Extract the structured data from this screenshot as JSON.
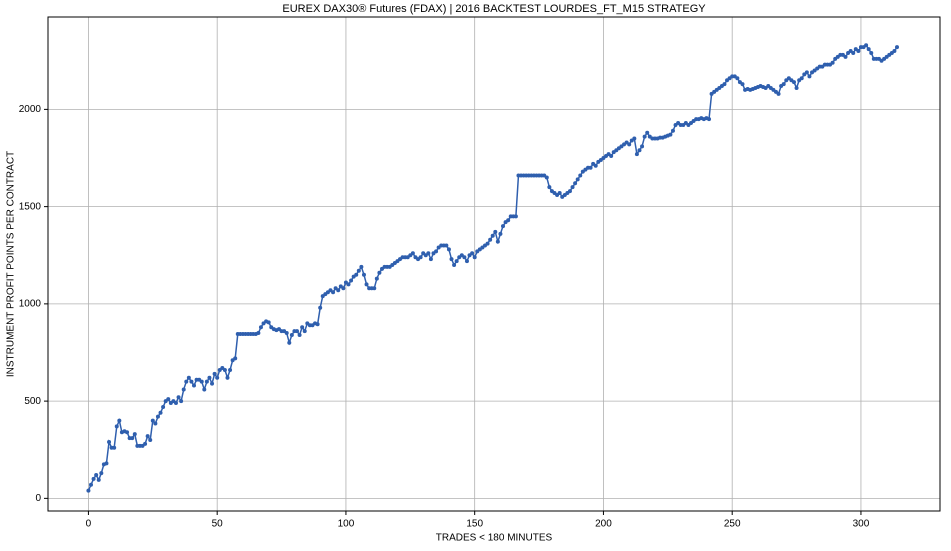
{
  "chart_data": {
    "type": "line",
    "title": "EUREX DAX30® Futures (FDAX) | 2016 BACKTEST LOURDES_FT_M15 STRATEGY",
    "xlabel": "TRADES < 180 MINUTES",
    "ylabel": "INSTRUMENT PROFIT POINTS PER CONTRACT",
    "xlim": [
      -15.7,
      330.7
    ],
    "ylim": [
      -65,
      2475
    ],
    "xticks": [
      0,
      50,
      100,
      150,
      200,
      250,
      300
    ],
    "yticks": [
      0,
      500,
      1000,
      1500,
      2000
    ],
    "grid": true,
    "x": [
      0,
      1,
      2,
      3,
      4,
      5,
      6,
      7,
      8,
      9,
      10,
      11,
      12,
      13,
      14,
      15,
      16,
      17,
      18,
      19,
      20,
      21,
      22,
      23,
      24,
      25,
      26,
      27,
      28,
      29,
      30,
      31,
      32,
      33,
      34,
      35,
      36,
      37,
      38,
      39,
      40,
      41,
      42,
      43,
      44,
      45,
      46,
      47,
      48,
      49,
      50,
      51,
      52,
      53,
      54,
      55,
      56,
      57,
      58,
      59,
      60,
      61,
      62,
      63,
      64,
      65,
      66,
      67,
      68,
      69,
      70,
      71,
      72,
      73,
      74,
      75,
      76,
      77,
      78,
      79,
      80,
      81,
      82,
      83,
      84,
      85,
      86,
      87,
      88,
      89,
      90,
      91,
      92,
      93,
      94,
      95,
      96,
      97,
      98,
      99,
      100,
      101,
      102,
      103,
      104,
      105,
      106,
      107,
      108,
      109,
      110,
      111,
      112,
      113,
      114,
      115,
      116,
      117,
      118,
      119,
      120,
      121,
      122,
      123,
      124,
      125,
      126,
      127,
      128,
      129,
      130,
      131,
      132,
      133,
      134,
      135,
      136,
      137,
      138,
      139,
      140,
      141,
      142,
      143,
      144,
      145,
      146,
      147,
      148,
      149,
      150,
      151,
      152,
      153,
      154,
      155,
      156,
      157,
      158,
      159,
      160,
      161,
      162,
      163,
      164,
      165,
      166,
      167,
      168,
      169,
      170,
      171,
      172,
      173,
      174,
      175,
      176,
      177,
      178,
      179,
      180,
      181,
      182,
      183,
      184,
      185,
      186,
      187,
      188,
      189,
      190,
      191,
      192,
      193,
      194,
      195,
      196,
      197,
      198,
      199,
      200,
      201,
      202,
      203,
      204,
      205,
      206,
      207,
      208,
      209,
      210,
      211,
      212,
      213,
      214,
      215,
      216,
      217,
      218,
      219,
      220,
      221,
      222,
      223,
      224,
      225,
      226,
      227,
      228,
      229,
      230,
      231,
      232,
      233,
      234,
      235,
      236,
      237,
      238,
      239,
      240,
      241,
      242,
      243,
      244,
      245,
      246,
      247,
      248,
      249,
      250,
      251,
      252,
      253,
      254,
      255,
      256,
      257,
      258,
      259,
      260,
      261,
      262,
      263,
      264,
      265,
      266,
      267,
      268,
      269,
      270,
      271,
      272,
      273,
      274,
      275,
      276,
      277,
      278,
      279,
      280,
      281,
      282,
      283,
      284,
      285,
      286,
      287,
      288,
      289,
      290,
      291,
      292,
      293,
      294,
      295,
      296,
      297,
      298,
      299,
      300,
      301,
      302,
      303,
      304,
      305,
      306,
      307,
      308,
      309,
      310,
      311,
      312,
      313,
      314
    ],
    "series": [
      {
        "color": "#2f5fae",
        "values": [
          40,
          70,
          100,
          120,
          95,
          130,
          175,
          180,
          290,
          260,
          260,
          370,
          400,
          340,
          345,
          340,
          310,
          310,
          330,
          270,
          270,
          270,
          280,
          320,
          300,
          400,
          385,
          420,
          440,
          470,
          500,
          510,
          490,
          500,
          490,
          520,
          500,
          560,
          600,
          620,
          600,
          580,
          610,
          610,
          600,
          560,
          600,
          620,
          590,
          640,
          620,
          660,
          670,
          660,
          620,
          660,
          710,
          720,
          845,
          845,
          845,
          845,
          845,
          845,
          845,
          845,
          850,
          880,
          900,
          910,
          905,
          880,
          870,
          865,
          870,
          860,
          860,
          850,
          800,
          840,
          860,
          860,
          840,
          880,
          860,
          900,
          890,
          890,
          900,
          895,
          980,
          1040,
          1050,
          1060,
          1070,
          1060,
          1080,
          1070,
          1090,
          1080,
          1110,
          1100,
          1120,
          1140,
          1150,
          1170,
          1190,
          1150,
          1100,
          1080,
          1080,
          1080,
          1130,
          1160,
          1180,
          1190,
          1190,
          1190,
          1200,
          1210,
          1220,
          1230,
          1240,
          1240,
          1240,
          1250,
          1260,
          1240,
          1230,
          1240,
          1260,
          1250,
          1260,
          1230,
          1260,
          1270,
          1290,
          1300,
          1300,
          1300,
          1280,
          1230,
          1200,
          1220,
          1240,
          1250,
          1240,
          1220,
          1250,
          1260,
          1240,
          1270,
          1280,
          1290,
          1300,
          1310,
          1330,
          1350,
          1370,
          1320,
          1360,
          1400,
          1420,
          1430,
          1450,
          1450,
          1450,
          1660,
          1660,
          1660,
          1660,
          1660,
          1660,
          1660,
          1660,
          1660,
          1660,
          1660,
          1650,
          1600,
          1580,
          1570,
          1560,
          1570,
          1550,
          1560,
          1570,
          1580,
          1600,
          1620,
          1640,
          1660,
          1680,
          1690,
          1700,
          1700,
          1720,
          1710,
          1730,
          1740,
          1750,
          1760,
          1770,
          1760,
          1780,
          1790,
          1800,
          1810,
          1820,
          1830,
          1820,
          1840,
          1850,
          1770,
          1790,
          1810,
          1860,
          1880,
          1860,
          1850,
          1850,
          1850,
          1855,
          1855,
          1860,
          1865,
          1870,
          1890,
          1920,
          1930,
          1920,
          1920,
          1930,
          1920,
          1930,
          1940,
          1950,
          1950,
          1955,
          1950,
          1955,
          1950,
          2080,
          2090,
          2100,
          2110,
          2120,
          2130,
          2150,
          2160,
          2170,
          2170,
          2160,
          2140,
          2130,
          2100,
          2105,
          2100,
          2105,
          2110,
          2115,
          2120,
          2115,
          2110,
          2120,
          2110,
          2100,
          2090,
          2080,
          2120,
          2130,
          2150,
          2160,
          2150,
          2140,
          2110,
          2150,
          2160,
          2180,
          2190,
          2170,
          2190,
          2200,
          2210,
          2220,
          2220,
          2230,
          2230,
          2230,
          2240,
          2260,
          2270,
          2280,
          2280,
          2270,
          2290,
          2300,
          2290,
          2310,
          2300,
          2320,
          2320,
          2330,
          2310,
          2290,
          2260,
          2260,
          2260,
          2250,
          2260,
          2270,
          2280,
          2290,
          2300,
          2320
        ]
      }
    ]
  }
}
